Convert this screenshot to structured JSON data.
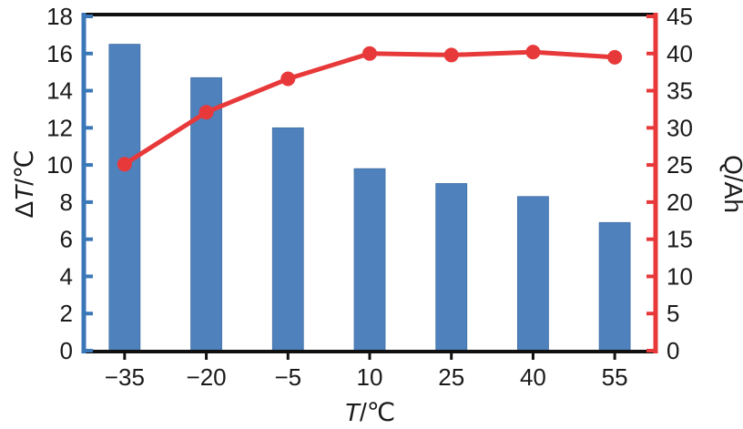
{
  "chart_data": {
    "type": "bar",
    "categories": [
      "−35",
      "−20",
      "−5",
      "10",
      "25",
      "40",
      "55"
    ],
    "series": [
      {
        "type": "bar",
        "axis": "left",
        "color": "#4f81bd",
        "values": [
          16.5,
          14.7,
          12.0,
          9.8,
          9.0,
          8.3,
          6.9
        ]
      },
      {
        "type": "line",
        "axis": "right",
        "color": "#e8393a",
        "values": [
          25.1,
          32.1,
          36.6,
          40.0,
          39.8,
          40.2,
          39.5
        ]
      }
    ],
    "xlabel": {
      "italic": "T",
      "unit": "/℃"
    },
    "ylabel_left": {
      "prefix": "Δ",
      "italic": "T",
      "unit": "/℃"
    },
    "ylabel_right": "Q/Ah",
    "ylim_left": [
      0,
      18
    ],
    "ylim_right": [
      0,
      45
    ],
    "yticks_left": [
      "0",
      "2",
      "4",
      "6",
      "8",
      "10",
      "12",
      "14",
      "16",
      "18"
    ],
    "yticks_right": [
      "0",
      "5",
      "10",
      "15",
      "20",
      "25",
      "30",
      "35",
      "40",
      "45"
    ],
    "left_axis_color": "#3b78b8",
    "right_axis_color": "#e8393a",
    "grid": false,
    "legend": "none"
  }
}
